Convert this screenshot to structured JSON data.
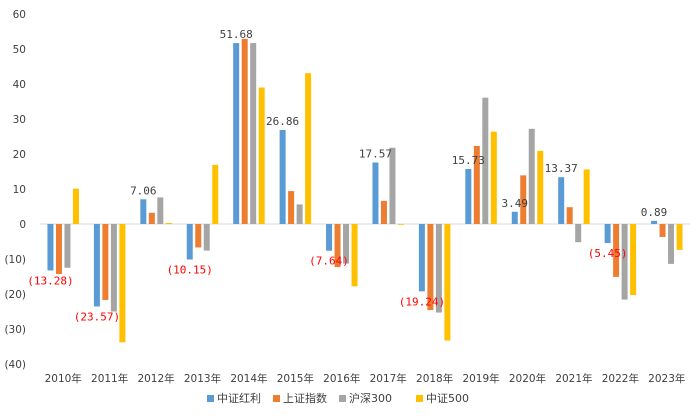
{
  "chart_data": {
    "type": "bar",
    "title": "",
    "xlabel": "",
    "ylabel": "",
    "ylim": [
      -40,
      60
    ],
    "y_ticks": [
      60,
      50,
      40,
      30,
      20,
      10,
      0,
      -10,
      -20,
      -30,
      -40
    ],
    "y_tick_labels": [
      "60",
      "50",
      "40",
      "30",
      "20",
      "10",
      "0",
      "(10)",
      "(20)",
      "(30)",
      "(40)"
    ],
    "grid": false,
    "legend_position": "bottom",
    "categories": [
      "2010年",
      "2011年",
      "2012年",
      "2013年",
      "2014年",
      "2015年",
      "2016年",
      "2017年",
      "2018年",
      "2019年",
      "2020年",
      "2021年",
      "2022年",
      "2023年"
    ],
    "series": [
      {
        "name": "中证红利",
        "color": "#5b9bd5",
        "values": [
          -13.28,
          -23.57,
          7.06,
          -10.15,
          51.68,
          26.86,
          -7.64,
          17.57,
          -19.24,
          15.73,
          3.49,
          13.37,
          -5.45,
          0.89
        ]
      },
      {
        "name": "上证指数",
        "color": "#ed7d31",
        "values": [
          -14.3,
          -21.7,
          3.2,
          -6.7,
          52.9,
          9.4,
          -12.3,
          6.6,
          -24.6,
          22.3,
          13.9,
          4.8,
          -15.1,
          -3.7
        ]
      },
      {
        "name": "沪深300",
        "color": "#a5a5a5",
        "values": [
          -12.5,
          -25.0,
          7.6,
          -7.6,
          51.7,
          5.6,
          -11.3,
          21.8,
          -25.3,
          36.1,
          27.2,
          -5.2,
          -21.6,
          -11.4
        ]
      },
      {
        "name": "中证500",
        "color": "#ffc000",
        "values": [
          10.1,
          -33.8,
          0.3,
          16.9,
          39.0,
          43.1,
          -17.8,
          -0.2,
          -33.3,
          26.4,
          20.9,
          15.6,
          -20.3,
          -7.4
        ]
      }
    ],
    "data_labels": {
      "series_index": 0,
      "texts": [
        "(13.28)",
        "(23.57)",
        "7.06",
        "(10.15)",
        "51.68",
        "26.86",
        "(7.64)",
        "17.57",
        "(19.24)",
        "15.73",
        "3.49",
        "13.37",
        "(5.45)",
        "0.89"
      ]
    }
  }
}
